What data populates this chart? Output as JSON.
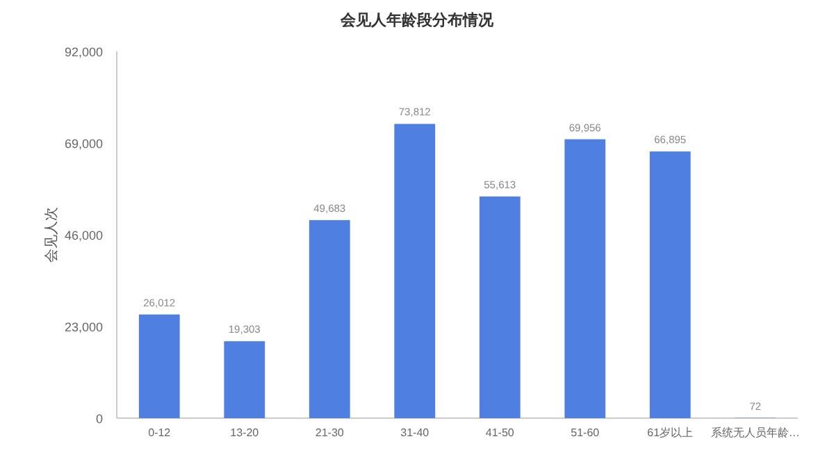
{
  "chart_data": {
    "type": "bar",
    "title": "会见人年龄段分布情况",
    "ylabel": "会见人次",
    "categories": [
      "0-12",
      "13-20",
      "21-30",
      "31-40",
      "41-50",
      "51-60",
      "61岁以上",
      "系统无人员年龄…"
    ],
    "values": [
      26012,
      19303,
      49683,
      73812,
      55613,
      69956,
      66895,
      72
    ],
    "color": "#4f80e1",
    "ylim": [
      0,
      92000
    ],
    "yticks": [
      {
        "value": 0,
        "label": "0"
      },
      {
        "value": 23000,
        "label": "23,000"
      },
      {
        "value": 46000,
        "label": "46,000"
      },
      {
        "value": 69000,
        "label": "69,000"
      },
      {
        "value": 92000,
        "label": "92,000"
      }
    ],
    "value_labels": [
      "26,012",
      "19,303",
      "49,683",
      "73,812",
      "55,613",
      "69,956",
      "66,895",
      "72"
    ],
    "grid": false
  }
}
